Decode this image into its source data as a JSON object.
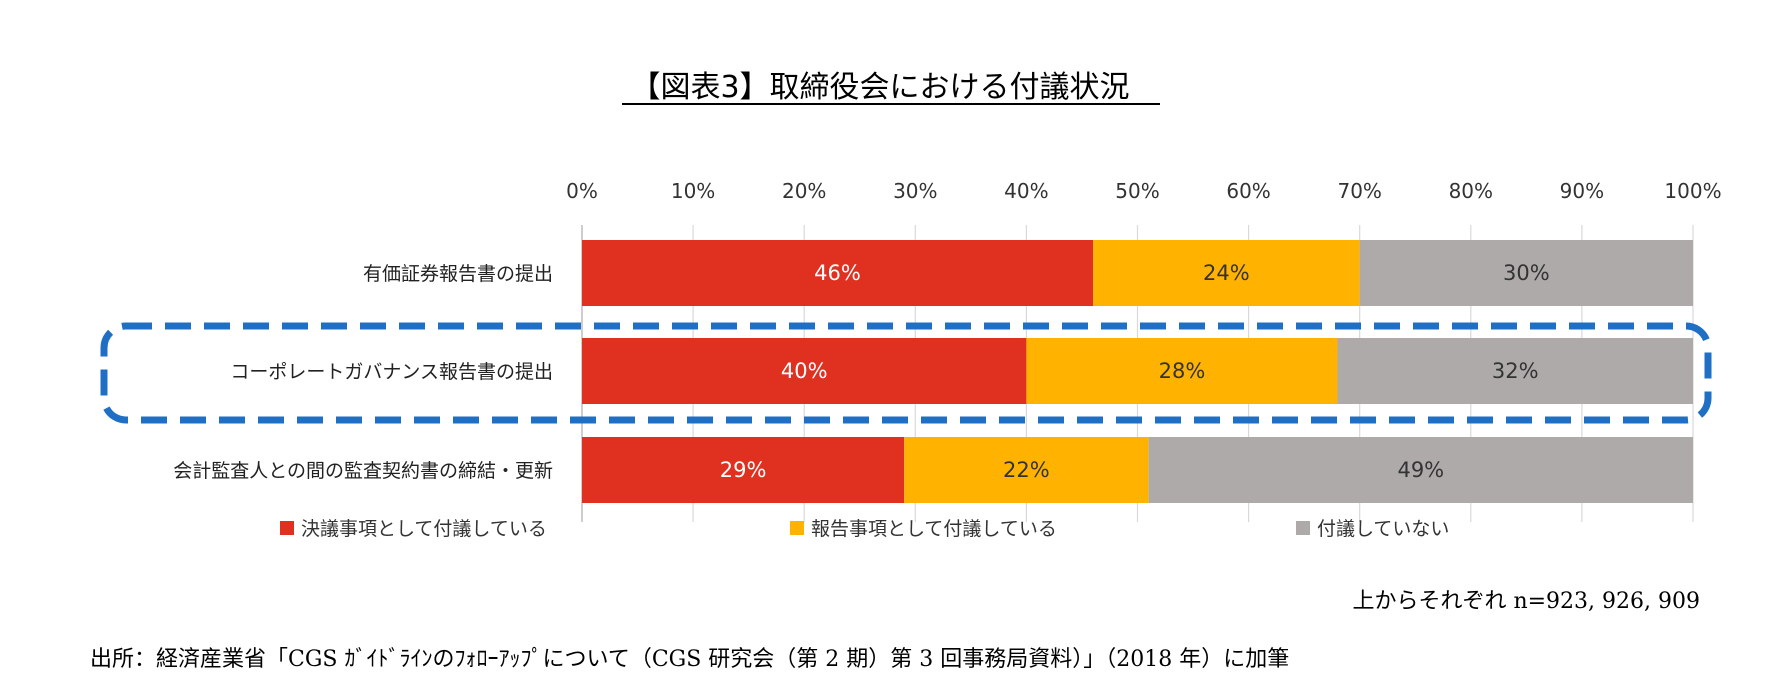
{
  "chart_data": {
    "type": "bar",
    "orientation": "horizontal",
    "stacked": true,
    "title": "【図表3】取締役会における付議状況",
    "xlim": [
      0,
      100
    ],
    "x_ticks": [
      "0%",
      "10%",
      "20%",
      "30%",
      "40%",
      "50%",
      "60%",
      "70%",
      "80%",
      "90%",
      "100%"
    ],
    "grid": true,
    "legend_position": "bottom",
    "categories": [
      "有価証券報告書の提出",
      "コーポレートガバナンス報告書の提出",
      "会計監査人との間の監査契約書の締結・更新"
    ],
    "series": [
      {
        "name": "決議事項として付議している",
        "values": [
          46,
          40,
          29
        ],
        "labels": [
          "46%",
          "40%",
          "29%"
        ],
        "color": "#e03120",
        "label_color": "#ffffff"
      },
      {
        "name": "報告事項として付議している",
        "values": [
          24,
          28,
          22
        ],
        "labels": [
          "24%",
          "28%",
          "22%"
        ],
        "color": "#ffb300",
        "label_color": "#333333"
      },
      {
        "name": "付議していない",
        "values": [
          30,
          32,
          49
        ],
        "labels": [
          "30%",
          "32%",
          "49%"
        ],
        "color": "#aeaaa9",
        "label_color": "#333333"
      }
    ],
    "highlight": {
      "category_index": 1,
      "style": "dashed-rounded",
      "color": "#1f6fc4"
    },
    "annotation": "上からそれぞれ n=923, 926, 909",
    "source": "出所：経済産業省「CGS ｶﾞｲﾄﾞﾗｲﾝのﾌｫﾛｰｱｯﾌﾟについて（CGS 研究会（第 2 期）第 3 回事務局資料）」（2018 年）に加筆"
  }
}
